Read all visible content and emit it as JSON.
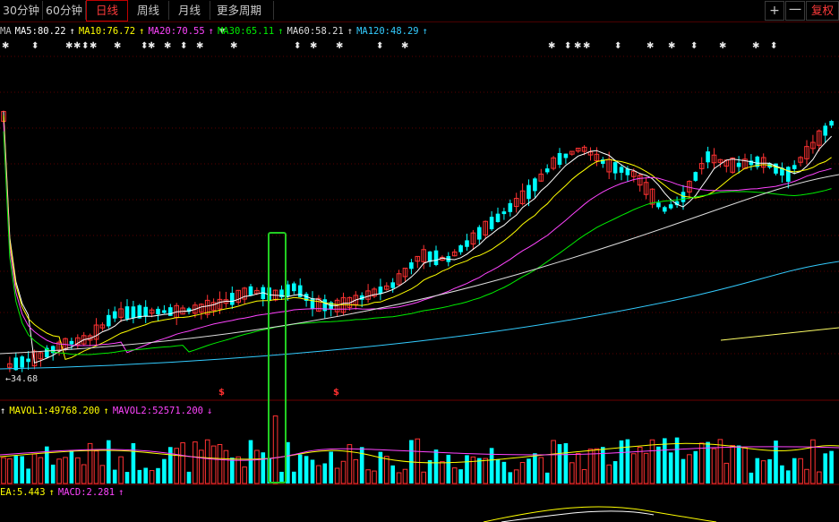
{
  "toolbar": {
    "tabs": [
      {
        "label": "30分钟",
        "active": false
      },
      {
        "label": "60分钟",
        "active": false
      },
      {
        "label": "日线",
        "active": true
      },
      {
        "label": "周线",
        "active": false
      },
      {
        "label": "月线",
        "active": false
      },
      {
        "label": "更多周期",
        "active": false,
        "dropdown": true
      }
    ],
    "plus": "+",
    "minus": "一",
    "restore": "复权"
  },
  "ma_legend": {
    "prefix": "MA",
    "items": [
      {
        "label": "MA5:80.22",
        "arrow": "↑",
        "color": "#ffffff"
      },
      {
        "label": "MA10:76.72",
        "arrow": "↑",
        "color": "#ffff00"
      },
      {
        "label": "MA20:70.55",
        "arrow": "↑",
        "color": "#ff44ff"
      },
      {
        "label": "MA30:65.11",
        "arrow": "↑",
        "color": "#00ee00"
      },
      {
        "label": "MA60:58.21",
        "arrow": "↑",
        "color": "#dddddd"
      },
      {
        "label": "MA120:48.29",
        "arrow": "↑",
        "color": "#33ccff"
      }
    ]
  },
  "vol_legend": {
    "lead_arrow": "↑",
    "items": [
      {
        "label": "MAVOL1:49768.200",
        "arrow": "↑",
        "color": "#ffff00"
      },
      {
        "label": "MAVOL2:52571.200",
        "arrow": "↓",
        "color": "#ff44ff"
      }
    ]
  },
  "macd_legend": {
    "items": [
      {
        "label": "EA:5.443",
        "arrow": "↑",
        "color": "#ffff00"
      },
      {
        "label": "MACD:2.281",
        "arrow": "↑",
        "color": "#ff44ff"
      }
    ]
  },
  "low_marker": "←34.68",
  "signal_glyph": "$",
  "colors": {
    "up": "#ff3232",
    "down": "#00ffff",
    "ma5": "#ffffff",
    "ma10": "#ffff00",
    "ma20": "#ff44ff",
    "ma30": "#00ee00",
    "ma60": "#dddddd",
    "ma120": "#33ccff",
    "highlight": "#22cc22"
  },
  "chart_data": {
    "type": "candlestick",
    "low_marker_value": 34.68
  }
}
